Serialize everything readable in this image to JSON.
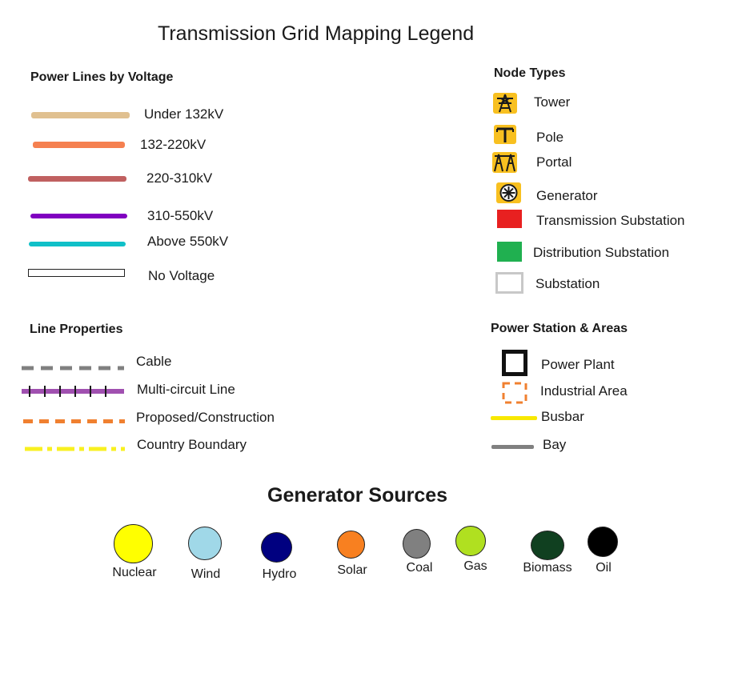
{
  "title": "Transmission Grid Mapping Legend",
  "voltage": {
    "heading": "Power Lines by Voltage",
    "items": [
      {
        "label": "Under 132kV",
        "color": "#e0c090"
      },
      {
        "label": "132-220kV",
        "color": "#f58050"
      },
      {
        "label": "220-310kV",
        "color": "#c06060"
      },
      {
        "label": "310-550kV",
        "color": "#8000c0"
      },
      {
        "label": "Above 550kV",
        "color": "#10c0c8"
      },
      {
        "label": "No Voltage",
        "color": "#ffffff"
      }
    ]
  },
  "nodes": {
    "heading": "Node Types",
    "items": [
      {
        "label": "Tower",
        "icon": "tower-icon"
      },
      {
        "label": "Pole",
        "icon": "pole-icon"
      },
      {
        "label": "Portal",
        "icon": "portal-icon"
      },
      {
        "label": "Generator",
        "icon": "generator-icon"
      },
      {
        "label": "Transmission Substation",
        "color": "#e82020"
      },
      {
        "label": "Distribution Substation",
        "color": "#20b050"
      },
      {
        "label": "Substation",
        "color": "#ffffff"
      }
    ]
  },
  "line_props": {
    "heading": "Line Properties",
    "items": [
      {
        "label": "Cable",
        "color": "#808080"
      },
      {
        "label": "Multi-circuit Line",
        "color": "#a050b0"
      },
      {
        "label": "Proposed/Construction",
        "color": "#f08030"
      },
      {
        "label": "Country Boundary",
        "color": "#f8f020"
      }
    ]
  },
  "station": {
    "heading": "Power Station & Areas",
    "items": [
      {
        "label": "Power Plant"
      },
      {
        "label": "Industrial Area",
        "color": "#f08030"
      },
      {
        "label": "Busbar",
        "color": "#f8e800"
      },
      {
        "label": "Bay",
        "color": "#808080"
      }
    ]
  },
  "generators": {
    "heading": "Generator Sources",
    "items": [
      {
        "label": "Nuclear",
        "color": "#ffff00"
      },
      {
        "label": "Wind",
        "color": "#a0d8e8"
      },
      {
        "label": "Hydro",
        "color": "#000080"
      },
      {
        "label": "Solar",
        "color": "#f88020"
      },
      {
        "label": "Coal",
        "color": "#808080"
      },
      {
        "label": "Gas",
        "color": "#b0e020"
      },
      {
        "label": "Biomass",
        "color": "#104020"
      },
      {
        "label": "Oil",
        "color": "#000000"
      }
    ]
  }
}
